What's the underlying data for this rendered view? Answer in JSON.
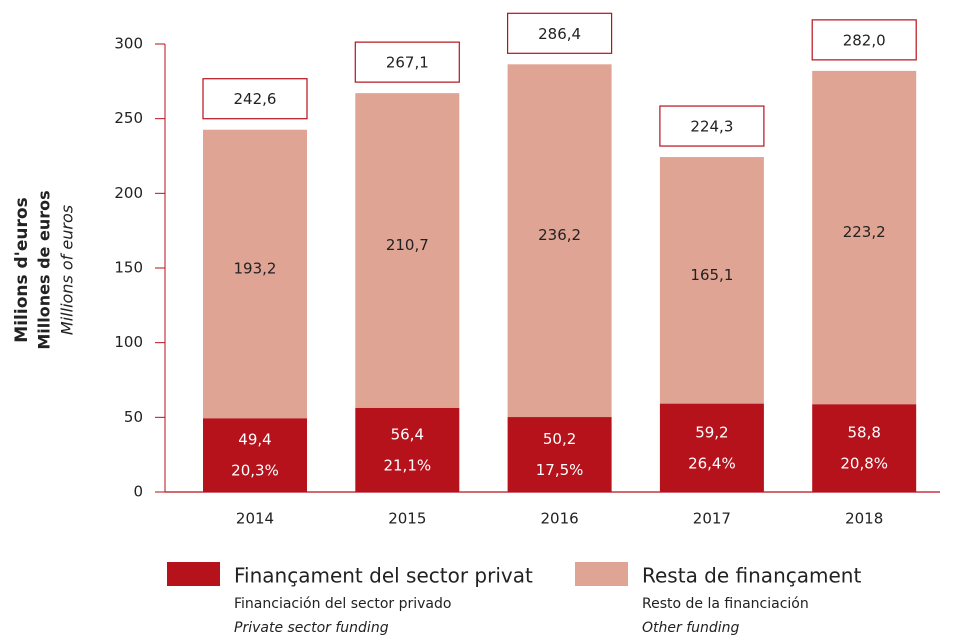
{
  "chart_data": {
    "type": "stacked-bar",
    "ylabel": [
      "Milions d'euros",
      "Millones de euros",
      "Millions of euros"
    ],
    "categories": [
      "2014",
      "2015",
      "2016",
      "2017",
      "2018"
    ],
    "series": [
      {
        "name": "Finançament del sector privat",
        "subnames": [
          "Financiación del sector privado",
          "Private sector funding"
        ],
        "color": "#b5121b",
        "values": [
          49.4,
          56.4,
          50.2,
          59.2,
          58.8
        ],
        "value_labels": [
          "49,4",
          "56,4",
          "50,2",
          "59,2",
          "58,8"
        ],
        "shares": [
          20.3,
          21.1,
          17.5,
          26.4,
          20.8
        ],
        "share_labels": [
          "20,3%",
          "21,1%",
          "17,5%",
          "26,4%",
          "20,8%"
        ]
      },
      {
        "name": "Resta de finançament",
        "subnames": [
          "Resto de la financiación",
          "Other funding"
        ],
        "color": "#e0a494",
        "values": [
          193.2,
          210.7,
          236.2,
          165.1,
          223.2
        ],
        "value_labels": [
          "193,2",
          "210,7",
          "236,2",
          "165,1",
          "223,2"
        ]
      }
    ],
    "totals": [
      242.6,
      267.1,
      286.4,
      224.3,
      282.0
    ],
    "total_labels": [
      "242,6",
      "267,1",
      "286,4",
      "224,3",
      "282,0"
    ],
    "ylim": [
      0,
      300
    ],
    "yticks": [
      0,
      50,
      100,
      150,
      200,
      250,
      300
    ],
    "axis_color": "#b5121b"
  }
}
